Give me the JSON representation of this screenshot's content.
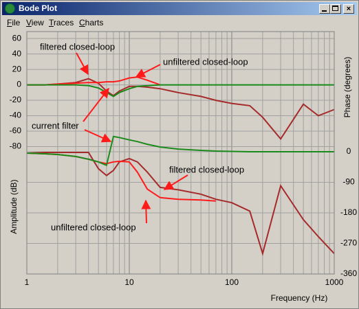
{
  "window": {
    "title": "Bode Plot",
    "menu": [
      "File",
      "View",
      "Traces",
      "Charts"
    ]
  },
  "chart_data": {
    "type": "line",
    "xlabel": "Frequency (Hz)",
    "ylabel": "Amplitude (dB)",
    "y2label": "Phase (degrees)",
    "log_x": true,
    "grid": true,
    "xlim": [
      1,
      1000
    ],
    "xticks": [
      1,
      10,
      100,
      1000
    ],
    "ylim": [
      -245,
      69
    ],
    "yticks": [
      60,
      40,
      20,
      0,
      -20,
      -40,
      -60,
      -80
    ],
    "y2lim": [
      -360,
      354
    ],
    "y2ticks": [
      0,
      -90,
      -180,
      -270,
      -360
    ],
    "annotations": [
      "filtered closed-loop",
      "unfiltered closed-loop",
      "current filter",
      "filtered closed-loop",
      "unfiltered closed-loop"
    ],
    "x": [
      1,
      1.5,
      2,
      3,
      4,
      5,
      6,
      7,
      8,
      10,
      12,
      15,
      20,
      30,
      50,
      70,
      100,
      150,
      200,
      300,
      500,
      700,
      1000
    ],
    "series": [
      {
        "color": "#a52a2a",
        "values": [
          0,
          0,
          1,
          3,
          8,
          2,
          -8,
          -14,
          -8,
          -2,
          -2,
          -3,
          -5,
          -10,
          -15,
          -20,
          -24,
          -27,
          -42,
          -70,
          -25,
          -40,
          -32
        ]
      },
      {
        "color": "#ff1a1a",
        "values": [
          0,
          0,
          1,
          2,
          3,
          3,
          4,
          4,
          5,
          9,
          10,
          6,
          0,
          null,
          null,
          null,
          null,
          null,
          null,
          null,
          null,
          null,
          null
        ]
      },
      {
        "color": "#1a8a1a",
        "values": [
          0,
          0,
          0,
          0,
          -1,
          -4,
          -10,
          -15,
          -10,
          -5,
          -2,
          -1,
          0,
          0,
          0,
          0,
          0,
          0,
          0,
          0,
          0,
          0,
          0
        ]
      },
      {
        "color": "#a52a2a",
        "axis": "y2",
        "values": [
          -4,
          -2,
          -2,
          -2,
          -2,
          -50,
          -70,
          -55,
          -30,
          -20,
          -30,
          -60,
          -105,
          -112,
          -125,
          -140,
          -150,
          -175,
          -300,
          -100,
          -200,
          -250,
          -300
        ]
      },
      {
        "color": "#ff1a1a",
        "axis": "y2",
        "values": [
          -4,
          -6,
          -8,
          -14,
          -22,
          -30,
          -35,
          -30,
          -28,
          -30,
          -60,
          -110,
          -135,
          -140,
          -142,
          -145,
          null,
          null,
          null,
          null,
          null,
          null,
          null
        ]
      },
      {
        "color": "#1a8a1a",
        "axis": "y2",
        "values": [
          -4,
          -6,
          -8,
          -14,
          -22,
          -30,
          -40,
          45,
          42,
          35,
          30,
          22,
          14,
          8,
          4,
          2,
          1,
          0,
          0,
          0,
          0,
          0,
          0
        ]
      }
    ]
  }
}
